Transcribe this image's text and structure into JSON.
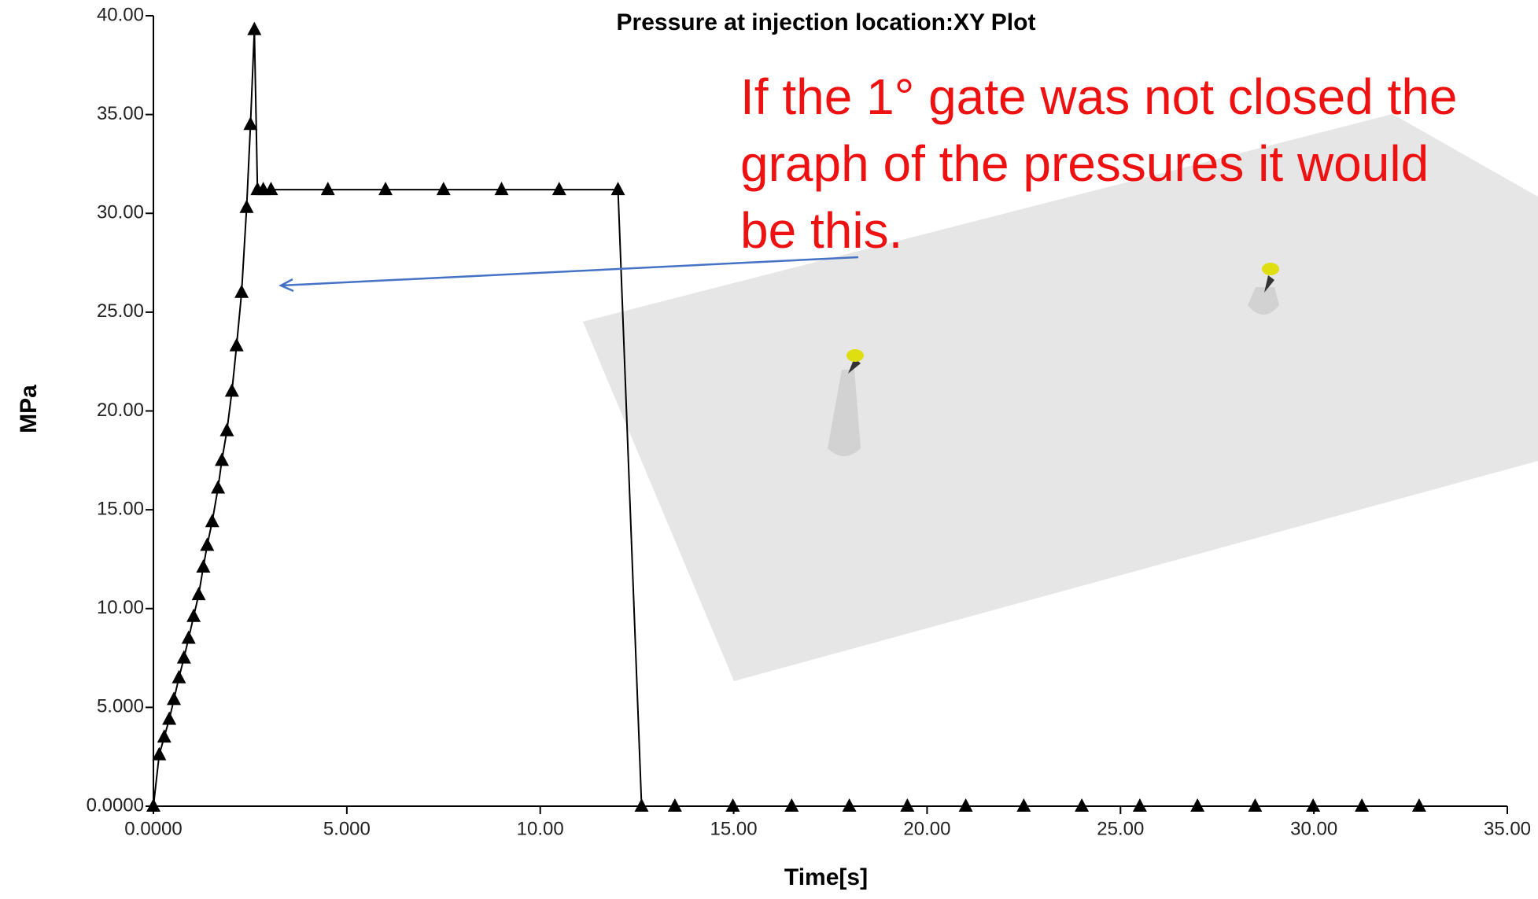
{
  "chart_data": {
    "type": "line",
    "title": "Pressure at injection location:XY Plot",
    "x_label": "Time[s]",
    "y_label": "MPa",
    "annotation": [
      "If the 1° gate was not closed the",
      "graph of the pressures it would",
      "be this."
    ],
    "xlim": [
      0,
      35
    ],
    "ylim": [
      0,
      40
    ],
    "xticks": [
      {
        "value": 0,
        "label": "0.0000"
      },
      {
        "value": 5,
        "label": "5.000"
      },
      {
        "value": 10,
        "label": "10.00"
      },
      {
        "value": 15,
        "label": "15.00"
      },
      {
        "value": 20,
        "label": "20.00"
      },
      {
        "value": 25,
        "label": "25.00"
      },
      {
        "value": 30,
        "label": "30.00"
      },
      {
        "value": 35,
        "label": "35.00"
      }
    ],
    "yticks": [
      {
        "value": 0,
        "label": "0.0000"
      },
      {
        "value": 5,
        "label": "5.000"
      },
      {
        "value": 10,
        "label": "10.00"
      },
      {
        "value": 15,
        "label": "15.00"
      },
      {
        "value": 20,
        "label": "20.00"
      },
      {
        "value": 25,
        "label": "25.00"
      },
      {
        "value": 30,
        "label": "30.00"
      },
      {
        "value": 35,
        "label": "35.00"
      },
      {
        "value": 40,
        "label": "40.00"
      }
    ],
    "color": "#000000",
    "x": [
      0,
      0.15,
      0.28,
      0.41,
      0.53,
      0.66,
      0.79,
      0.91,
      1.04,
      1.17,
      1.29,
      1.39,
      1.52,
      1.67,
      1.77,
      1.9,
      2.03,
      2.15,
      2.28,
      2.41,
      2.51,
      2.61,
      2.69,
      2.84,
      3.04,
      4.51,
      6.0,
      7.5,
      9.0,
      10.49,
      12.01,
      12.62,
      13.48,
      14.98,
      16.5,
      17.99,
      19.49,
      21.0,
      22.5,
      24.0,
      25.5,
      26.99,
      28.48,
      29.98,
      31.24,
      32.72
    ],
    "values": [
      0,
      2.6,
      3.5,
      4.4,
      5.4,
      6.5,
      7.5,
      8.5,
      9.6,
      10.7,
      12.1,
      13.2,
      14.4,
      16.1,
      17.5,
      19.0,
      21.0,
      23.3,
      26.0,
      30.3,
      34.5,
      39.3,
      31.2,
      31.2,
      31.2,
      31.2,
      31.2,
      31.2,
      31.2,
      31.2,
      31.2,
      0,
      0,
      0,
      0,
      0,
      0,
      0,
      0,
      0,
      0,
      0,
      0,
      0,
      0,
      0
    ]
  }
}
